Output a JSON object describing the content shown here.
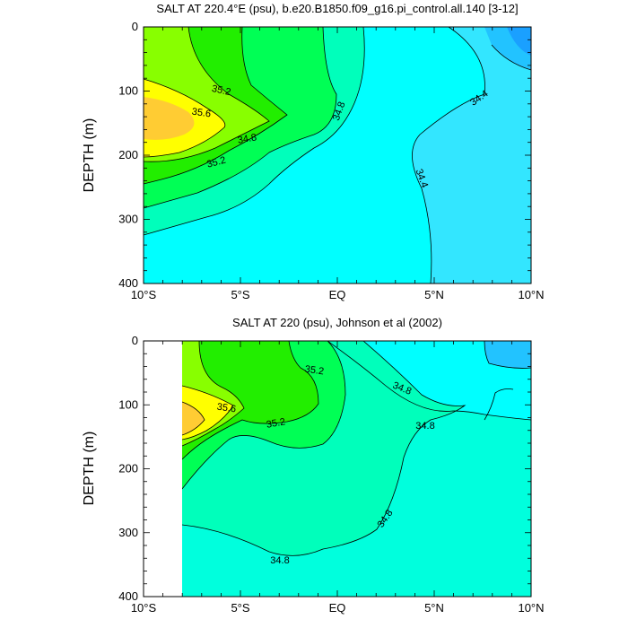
{
  "chart_data": [
    {
      "type": "contour",
      "title": "SALT AT 220.4°E (psu), b.e20.B1850.f09_g16.pi_control.all.140 [3-12]",
      "xlabel": "",
      "ylabel": "DEPTH (m)",
      "x_ticks": [
        "10°S",
        "5°S",
        "EQ",
        "5°N",
        "10°N"
      ],
      "y_ticks": [
        "0",
        "100",
        "200",
        "300",
        "400"
      ],
      "xlim": [
        -10,
        10
      ],
      "ylim": [
        400,
        0
      ],
      "contour_labels": [
        "35.2",
        "35.6",
        "34.8",
        "35.2",
        "34.8",
        "34.4",
        "34.4"
      ],
      "colors": [
        "#1aa0ff",
        "#22c3ff",
        "#33e6ff",
        "#00ffff",
        "#00ffbb",
        "#00ff55",
        "#22ee00",
        "#88ff00",
        "#ffff00",
        "#ffcc33"
      ]
    },
    {
      "type": "contour",
      "title": "SALT AT 220 (psu), Johnson et al (2002)",
      "xlabel": "",
      "ylabel": "DEPTH (m)",
      "x_ticks": [
        "10°S",
        "5°S",
        "EQ",
        "5°N",
        "10°N"
      ],
      "y_ticks": [
        "0",
        "100",
        "200",
        "300",
        "400"
      ],
      "xlim": [
        -10,
        10
      ],
      "ylim": [
        400,
        0
      ],
      "contour_labels": [
        "35.2",
        "35.6",
        "35.2",
        "34.8",
        "34.8",
        "34.8",
        "34.8"
      ],
      "colors": [
        "#22c3ff",
        "#00ffff",
        "#00ffdd",
        "#00ffbb",
        "#00ff55",
        "#22ee00",
        "#88ff00",
        "#ffff00",
        "#ffcc33"
      ]
    }
  ]
}
